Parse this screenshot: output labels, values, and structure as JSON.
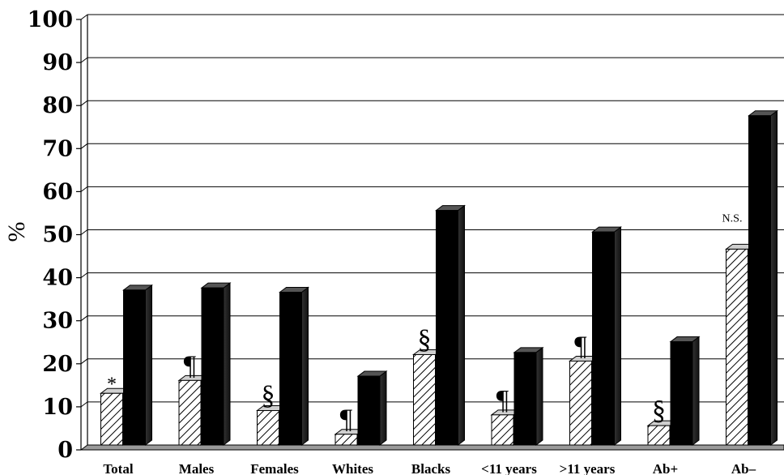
{
  "chart_data": {
    "type": "bar",
    "ylabel": "%",
    "xlabel": "",
    "ylim": [
      0,
      100
    ],
    "yticks": [
      "0",
      "10",
      "20",
      "30",
      "40",
      "50",
      "60",
      "70",
      "80",
      "90",
      "100"
    ],
    "grid": true,
    "categories": [
      "Total",
      "Males",
      "Females",
      "Whites",
      "Blacks",
      "<11 years",
      ">11 years",
      "Ab+",
      "Ab–"
    ],
    "series": [
      {
        "values": [
          12,
          15,
          8,
          2.5,
          21,
          7,
          19.5,
          4.5,
          45.5
        ],
        "color": "#ffffff",
        "pattern": "hatched"
      },
      {
        "values": [
          36,
          36.5,
          35.5,
          16,
          54.5,
          21.5,
          49.5,
          24,
          76.5
        ],
        "color": "#000000",
        "pattern": "solid"
      }
    ],
    "annotations": [
      "*",
      "¶",
      "§",
      "¶",
      "§",
      "¶",
      "¶",
      "§",
      "N.S."
    ]
  }
}
